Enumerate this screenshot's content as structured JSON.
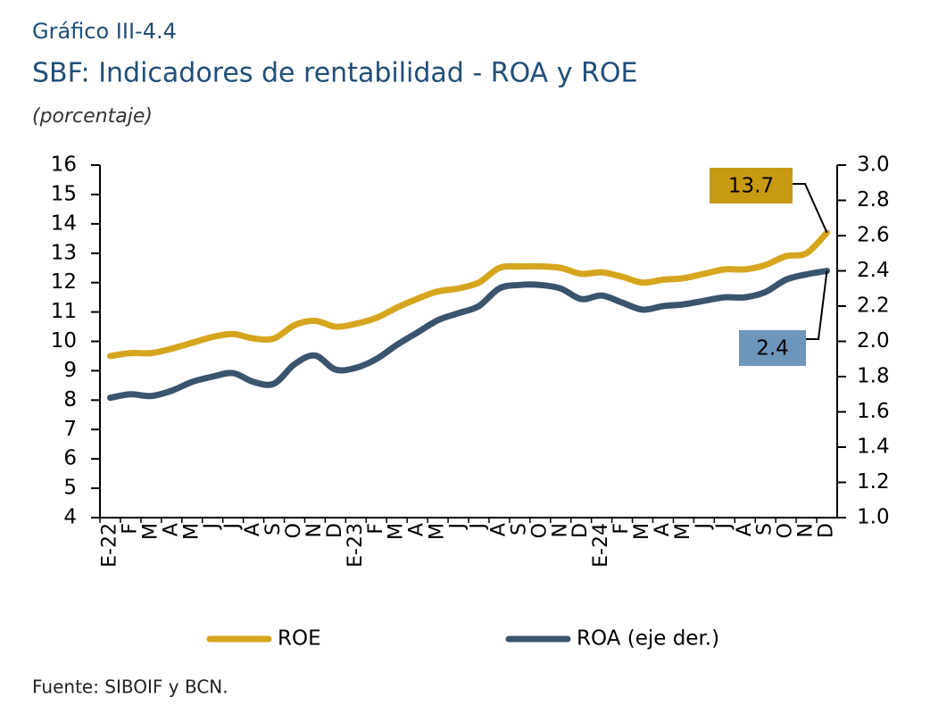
{
  "chart_data": {
    "type": "line",
    "pretitle": "Gráfico III-4.4",
    "title": "SBF: Indicadores de rentabilidad - ROA y ROE",
    "subtitle": "(porcentaje)",
    "source": "Fuente: SIBOIF y BCN.",
    "categories": [
      "E-22",
      "F",
      "M",
      "A",
      "M",
      "J",
      "J",
      "A",
      "S",
      "O",
      "N",
      "D",
      "E-23",
      "F",
      "M",
      "A",
      "M",
      "J",
      "J",
      "A",
      "S",
      "O",
      "N",
      "D",
      "E-24",
      "F",
      "M",
      "A",
      "M",
      "J",
      "J",
      "A",
      "S",
      "O",
      "N",
      "D"
    ],
    "series": [
      {
        "name": "ROE",
        "color": "#d6a51e",
        "label_color": "#c89a12",
        "values": [
          9.5,
          9.6,
          9.6,
          9.75,
          9.95,
          10.15,
          10.25,
          10.1,
          10.1,
          10.55,
          10.7,
          10.5,
          10.6,
          10.8,
          11.15,
          11.45,
          11.7,
          11.8,
          12.0,
          12.5,
          12.55,
          12.55,
          12.5,
          12.3,
          12.35,
          12.2,
          12.0,
          12.1,
          12.15,
          12.3,
          12.45,
          12.45,
          12.6,
          12.9,
          13.0,
          13.7
        ]
      },
      {
        "name": "ROA (eje der.)",
        "color": "#3a546e",
        "label_color": "#6d96ba",
        "axis": "y2",
        "values": [
          1.68,
          1.7,
          1.69,
          1.72,
          1.77,
          1.8,
          1.82,
          1.77,
          1.76,
          1.87,
          1.92,
          1.84,
          1.85,
          1.9,
          1.98,
          2.05,
          2.12,
          2.16,
          2.2,
          2.3,
          2.32,
          2.32,
          2.3,
          2.24,
          2.26,
          2.22,
          2.18,
          2.2,
          2.21,
          2.23,
          2.25,
          2.25,
          2.28,
          2.35,
          2.38,
          2.4
        ]
      }
    ],
    "ylim": [
      4,
      16
    ],
    "yticks": [
      4,
      5,
      6,
      7,
      8,
      9,
      10,
      11,
      12,
      13,
      14,
      15,
      16
    ],
    "y2lim": [
      1,
      3
    ],
    "y2ticks": [
      {
        "value": 1,
        "label": "1.0"
      },
      1.2,
      1.4,
      1.6,
      1.8,
      {
        "value": 2,
        "label": "2.0"
      },
      2.2,
      2.4,
      2.6,
      2.8,
      {
        "value": 3,
        "label": "3.0"
      }
    ],
    "grid": false,
    "legend": "bottom"
  }
}
